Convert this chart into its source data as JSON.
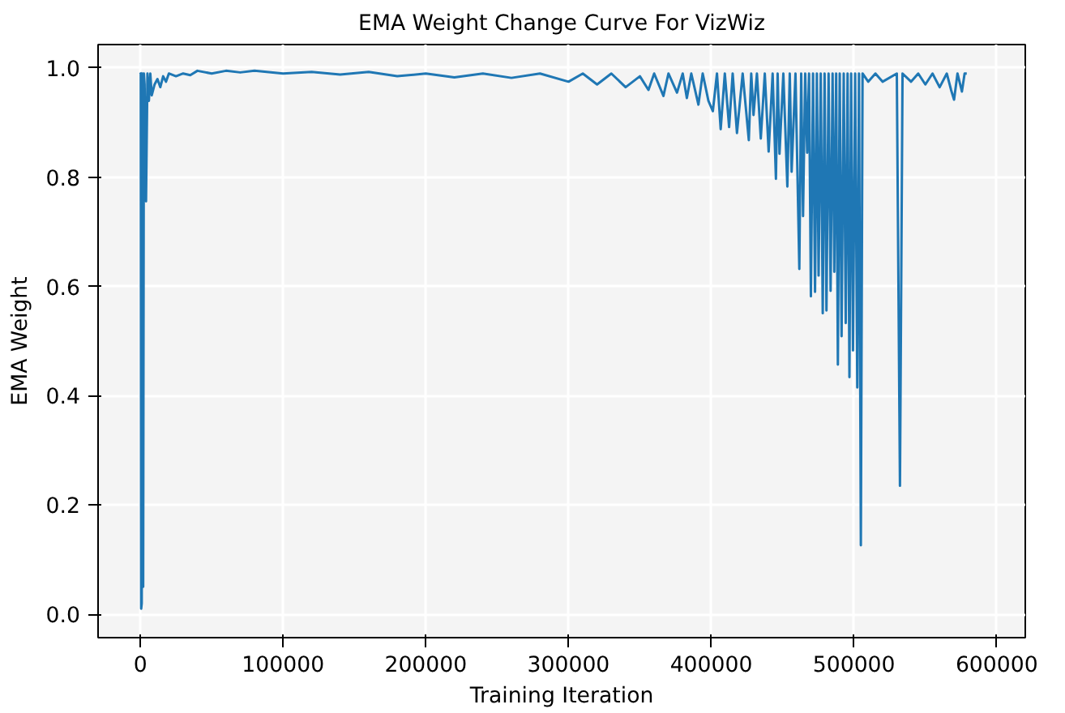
{
  "chart_data": {
    "type": "line",
    "title": "EMA Weight Change Curve For VizWiz",
    "xlabel": "Training Iteration",
    "ylabel": "EMA Weight",
    "x": [
      0,
      300,
      600,
      1000,
      1500,
      2000,
      2500,
      3000,
      4000,
      5000,
      6000,
      7000,
      8000,
      10000,
      12000,
      14000,
      16000,
      18000,
      20000,
      25000,
      30000,
      35000,
      40000,
      50000,
      60000,
      70000,
      80000,
      100000,
      120000,
      140000,
      160000,
      180000,
      200000,
      220000,
      240000,
      260000,
      280000,
      300000,
      310000,
      320000,
      330000,
      340000,
      350000,
      356000,
      360000,
      366500,
      370000,
      376000,
      380000,
      382900,
      386000,
      391000,
      394000,
      398000,
      401100,
      404000,
      406600,
      409500,
      412500,
      415000,
      418000,
      422000,
      426300,
      428000,
      429600,
      432000,
      434700,
      437500,
      440200,
      443000,
      445300,
      446500,
      447800,
      450500,
      453300,
      455000,
      456300,
      459000,
      461700,
      463000,
      464300,
      465800,
      467200,
      468500,
      469800,
      471300,
      472700,
      474000,
      475200,
      476700,
      478100,
      479400,
      480700,
      482200,
      483600,
      485000,
      486200,
      487500,
      488700,
      490000,
      491300,
      492800,
      494200,
      495500,
      496800,
      498000,
      499300,
      500800,
      502300,
      503500,
      504800,
      506000,
      510000,
      515000,
      520000,
      530000,
      532200,
      534000,
      540000,
      545000,
      550000,
      555000,
      560000,
      565000,
      568000,
      570100,
      572500,
      575600,
      577500,
      579000
    ],
    "values": [
      0.992,
      0.99,
      0.01,
      0.02,
      0.99,
      0.05,
      0.99,
      0.97,
      0.756,
      0.99,
      0.94,
      0.99,
      0.95,
      0.97,
      0.98,
      0.965,
      0.985,
      0.975,
      0.99,
      0.985,
      0.99,
      0.987,
      0.995,
      0.99,
      0.995,
      0.992,
      0.995,
      0.99,
      0.993,
      0.988,
      0.993,
      0.985,
      0.99,
      0.983,
      0.99,
      0.982,
      0.99,
      0.975,
      0.99,
      0.97,
      0.99,
      0.965,
      0.985,
      0.96,
      0.99,
      0.949,
      0.99,
      0.955,
      0.99,
      0.945,
      0.99,
      0.933,
      0.99,
      0.94,
      0.921,
      0.99,
      0.888,
      0.99,
      0.892,
      0.99,
      0.881,
      0.99,
      0.868,
      0.99,
      0.914,
      0.99,
      0.871,
      0.99,
      0.847,
      0.99,
      0.797,
      0.99,
      0.843,
      0.99,
      0.783,
      0.99,
      0.81,
      0.99,
      0.632,
      0.99,
      0.729,
      0.99,
      0.845,
      0.99,
      0.582,
      0.99,
      0.59,
      0.99,
      0.62,
      0.99,
      0.551,
      0.99,
      0.556,
      0.99,
      0.592,
      0.99,
      0.627,
      0.99,
      0.457,
      0.99,
      0.509,
      0.99,
      0.533,
      0.99,
      0.434,
      0.99,
      0.483,
      0.99,
      0.415,
      0.99,
      0.126,
      0.99,
      0.975,
      0.99,
      0.975,
      0.99,
      0.235,
      0.99,
      0.975,
      0.99,
      0.97,
      0.99,
      0.965,
      0.99,
      0.96,
      0.942,
      0.99,
      0.957,
      0.99,
      0.99
    ],
    "color": "#1f77b4",
    "xlim": [
      -29600,
      620000
    ],
    "ylim": [
      -0.043,
      1.043
    ],
    "xticks": [
      0,
      100000,
      200000,
      300000,
      400000,
      500000,
      600000
    ],
    "yticks": [
      {
        "value": 0,
        "label": "0.0"
      },
      {
        "value": 0.2,
        "label": "0.2"
      },
      {
        "value": 0.4,
        "label": "0.4"
      },
      {
        "value": 0.6,
        "label": "0.6"
      },
      {
        "value": 0.8,
        "label": "0.8"
      },
      {
        "value": 1,
        "label": "1.0"
      }
    ],
    "grid": true
  }
}
